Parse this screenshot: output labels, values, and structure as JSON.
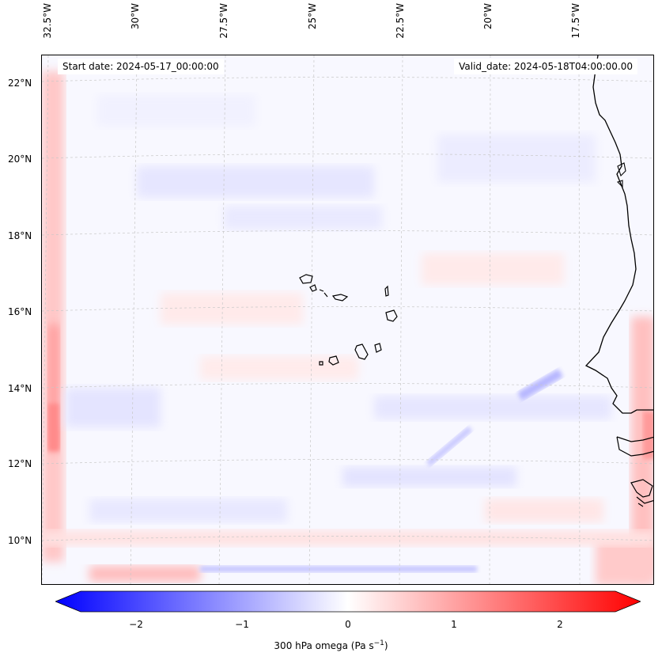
{
  "map": {
    "lon_labels": [
      "32.5°W",
      "30°W",
      "27.5°W",
      "25°W",
      "22.5°W",
      "20°W",
      "17.5°W"
    ],
    "lat_labels": [
      "22°N",
      "20°N",
      "18°N",
      "16°N",
      "14°N",
      "12°N",
      "10°N"
    ],
    "start_date": "Start date: 2024-05-17_00:00:00",
    "valid_date": "Valid_date: 2024-05-18T04:00:00.00",
    "field_colors": {
      "negative": "#0000ff",
      "neutral": "#ffffff",
      "positive": "#ff0000"
    }
  },
  "colorbar": {
    "ticks": [
      "−2",
      "−1",
      "0",
      "1",
      "2"
    ],
    "title_prefix": "300 hPa omega (Pa s",
    "title_exp": "−1",
    "title_suffix": ")",
    "vmin": -2.6,
    "vmax": 2.6
  }
}
